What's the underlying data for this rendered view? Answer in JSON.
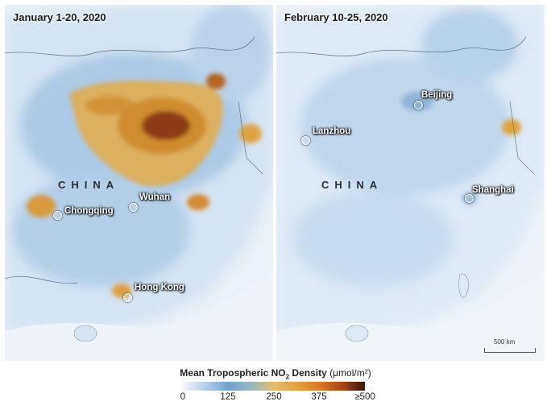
{
  "panels": {
    "left": {
      "title": "January 1-20, 2020",
      "country": "CHINA",
      "cities": [
        "Chongqing",
        "Wuhan",
        "Hong Kong"
      ]
    },
    "right": {
      "title": "February 10-25, 2020",
      "country": "CHINA",
      "cities": [
        "Beijing",
        "Lanzhou",
        "Shanghai"
      ],
      "scale_label": "500 km"
    }
  },
  "legend": {
    "title_main": "Mean Tropospheric NO",
    "title_sub": "2",
    "title_rest": " Density",
    "unit": "(μmol/m²)",
    "ticks": [
      "0",
      "125",
      "250",
      "375",
      "≥500"
    ]
  },
  "colors": {
    "low": "#f3f7fb",
    "mid": "#e6be6a",
    "high": "#3a1507",
    "water": "#e8f0f7"
  }
}
